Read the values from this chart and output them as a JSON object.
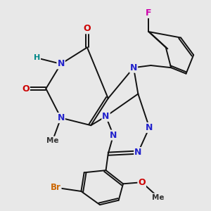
{
  "background_color": "#e8e8e8",
  "fig_size": [
    3.0,
    3.0
  ],
  "dpi": 100,
  "atom_colors": {
    "N": "#2222cc",
    "O": "#cc0000",
    "Br": "#cc6600",
    "F": "#cc00aa",
    "H": "#008888",
    "C": "#111111"
  },
  "bond_lw": 1.4,
  "font_size": 9
}
